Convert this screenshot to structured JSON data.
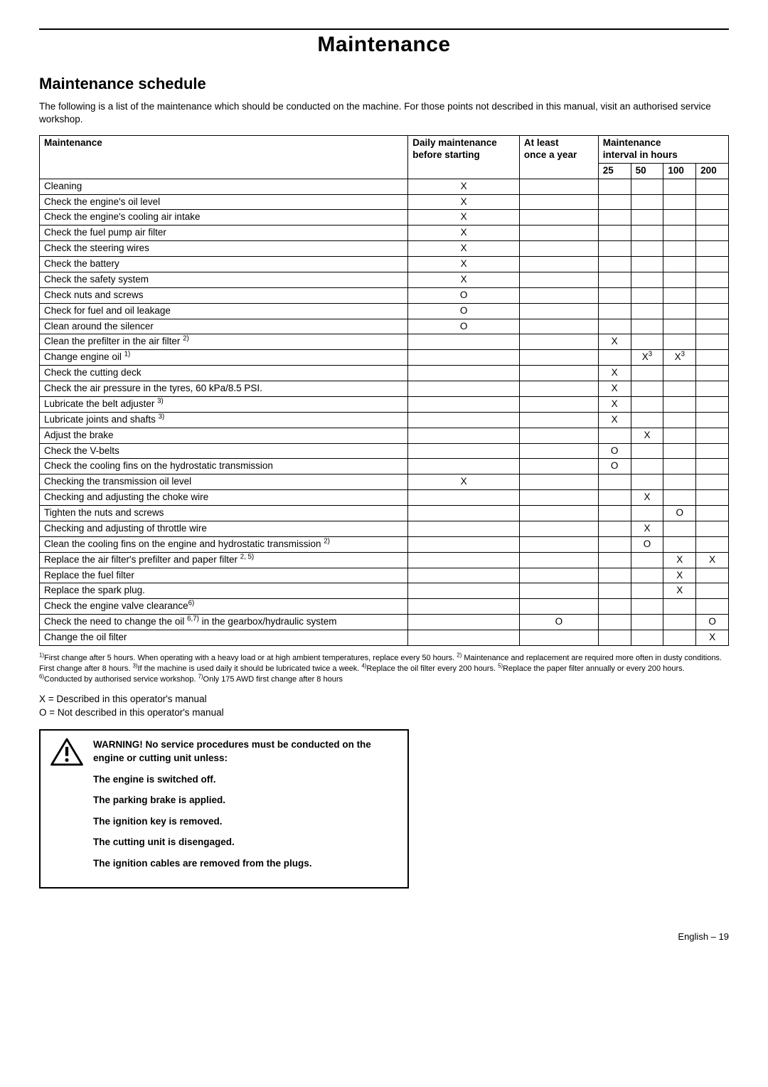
{
  "page_title": "Maintenance",
  "section_title": "Maintenance schedule",
  "intro": "The following is a list of the maintenance which should be conducted on the machine. For those points not described in this manual, visit an authorised service workshop.",
  "table": {
    "headers": {
      "task": "Maintenance",
      "daily_l1": "Daily maintenance",
      "daily_l2": "before starting",
      "year_l1": "At least",
      "year_l2": "once a year",
      "interval_l1": "Maintenance",
      "interval_l2": "interval in hours",
      "h25": "25",
      "h50": "50",
      "h100": "100",
      "h200": "200"
    },
    "rows": [
      {
        "task": "Cleaning",
        "daily": "X",
        "year": "",
        "h25": "",
        "h50": "",
        "h100": "",
        "h200": ""
      },
      {
        "task": "Check the engine's oil level",
        "daily": "X",
        "year": "",
        "h25": "",
        "h50": "",
        "h100": "",
        "h200": ""
      },
      {
        "task": "Check the engine's cooling air intake",
        "daily": "X",
        "year": "",
        "h25": "",
        "h50": "",
        "h100": "",
        "h200": ""
      },
      {
        "task": "Check the fuel pump air filter",
        "daily": "X",
        "year": "",
        "h25": "",
        "h50": "",
        "h100": "",
        "h200": ""
      },
      {
        "task": "Check the steering wires",
        "daily": "X",
        "year": "",
        "h25": "",
        "h50": "",
        "h100": "",
        "h200": ""
      },
      {
        "task": "Check the battery",
        "daily": "X",
        "year": "",
        "h25": "",
        "h50": "",
        "h100": "",
        "h200": ""
      },
      {
        "task": "Check the safety system",
        "daily": "X",
        "year": "",
        "h25": "",
        "h50": "",
        "h100": "",
        "h200": ""
      },
      {
        "task": "Check nuts and screws",
        "daily": "O",
        "year": "",
        "h25": "",
        "h50": "",
        "h100": "",
        "h200": ""
      },
      {
        "task": "Check for fuel and oil leakage",
        "daily": "O",
        "year": "",
        "h25": "",
        "h50": "",
        "h100": "",
        "h200": ""
      },
      {
        "task": "Clean around the silencer",
        "daily": "O",
        "year": "",
        "h25": "",
        "h50": "",
        "h100": "",
        "h200": ""
      },
      {
        "task_html": "Clean the prefilter in the air filter <sup>2)</sup>",
        "daily": "",
        "year": "",
        "h25": "X",
        "h50": "",
        "h100": "",
        "h200": ""
      },
      {
        "task_html": "Change engine oil <sup>1)</sup>",
        "daily": "",
        "year": "",
        "h25": "",
        "h50_html": "X<sup>3</sup>",
        "h100_html": "X<sup>3</sup>",
        "h200": ""
      },
      {
        "task": "Check the cutting deck",
        "daily": "",
        "year": "",
        "h25": "X",
        "h50": "",
        "h100": "",
        "h200": ""
      },
      {
        "task": "Check the air pressure in the tyres, 60 kPa/8.5 PSI.",
        "daily": "",
        "year": "",
        "h25": "X",
        "h50": "",
        "h100": "",
        "h200": ""
      },
      {
        "task_html": "Lubricate the belt adjuster <sup>3)</sup>",
        "daily": "",
        "year": "",
        "h25": "X",
        "h50": "",
        "h100": "",
        "h200": ""
      },
      {
        "task_html": "Lubricate joints and shafts <sup>3)</sup>",
        "daily": "",
        "year": "",
        "h25": "X",
        "h50": "",
        "h100": "",
        "h200": ""
      },
      {
        "task": "Adjust the brake",
        "daily": "",
        "year": "",
        "h25": "",
        "h50": "X",
        "h100": "",
        "h200": ""
      },
      {
        "task": "Check the V-belts",
        "daily": "",
        "year": "",
        "h25": "O",
        "h50": "",
        "h100": "",
        "h200": ""
      },
      {
        "task": "Check the cooling fins on the hydrostatic transmission",
        "daily": "",
        "year": "",
        "h25": "O",
        "h50": "",
        "h100": "",
        "h200": ""
      },
      {
        "task": "Checking the transmission oil level",
        "daily": "X",
        "year": "",
        "h25": "",
        "h50": "",
        "h100": "",
        "h200": ""
      },
      {
        "task": "Checking and adjusting the choke wire",
        "daily": "",
        "year": "",
        "h25": "",
        "h50": "X",
        "h100": "",
        "h200": ""
      },
      {
        "task": "Tighten the nuts and screws",
        "daily": "",
        "year": "",
        "h25": "",
        "h50": "",
        "h100": "O",
        "h200": ""
      },
      {
        "task": "Checking and adjusting of throttle wire",
        "daily": "",
        "year": "",
        "h25": "",
        "h50": "X",
        "h100": "",
        "h200": ""
      },
      {
        "task_html": "Clean the cooling fins on the engine and hydrostatic transmission <sup>2)</sup>",
        "daily": "",
        "year": "",
        "h25": "",
        "h50": "O",
        "h100": "",
        "h200": ""
      },
      {
        "task_html": "Replace the air filter's prefilter and paper filter <sup>2, 5)</sup>",
        "daily": "",
        "year": "",
        "h25": "",
        "h50": "",
        "h100": "X",
        "h200": "X"
      },
      {
        "task": "Replace the fuel filter",
        "daily": "",
        "year": "",
        "h25": "",
        "h50": "",
        "h100": "X",
        "h200": ""
      },
      {
        "task": "Replace the spark plug.",
        "daily": "",
        "year": "",
        "h25": "",
        "h50": "",
        "h100": "X",
        "h200": ""
      },
      {
        "task_html": "Check the engine valve clearance<sup>6)</sup>",
        "daily": "",
        "year": "",
        "h25": "",
        "h50": "",
        "h100": "",
        "h200": ""
      },
      {
        "task_html": "Check the need to change the oil <sup>6,7)</sup> in the gearbox/hydraulic system",
        "daily": "",
        "year": "O",
        "h25": "",
        "h50": "",
        "h100": "",
        "h200": "O"
      },
      {
        "task": "Change the oil filter",
        "daily": "",
        "year": "",
        "h25": "",
        "h50": "",
        "h100": "",
        "h200": "X"
      }
    ]
  },
  "footnotes_html": "<sup>1)</sup>First change after 5 hours. When operating with a heavy load or at high ambient temperatures, replace every 50 hours. <sup>2)</sup> Maintenance and replacement are required more often in dusty conditions. First change after 8 hours. <sup>3)</sup>If the machine is used daily it should be lubricated twice a week. <sup>4)</sup>Replace the oil filter every 200 hours. <sup>5)</sup>Replace the paper filter annually or every 200 hours. <sup>6)</sup>Conducted by authorised service workshop. <sup>7)</sup>Only 175 AWD first change after 8 hours",
  "legend_x": "X = Described in this operator's manual",
  "legend_o": "O = Not described in this operator's manual",
  "warning": {
    "heading": "WARNING! No service procedures must be conducted on the engine or cutting unit unless:",
    "items": [
      "The engine is switched off.",
      "The parking brake is applied.",
      "The ignition key is removed.",
      "The cutting unit is disengaged.",
      "The ignition cables are removed from the plugs."
    ]
  },
  "footer_lang": "English",
  "footer_dash": "–",
  "footer_page": "19"
}
